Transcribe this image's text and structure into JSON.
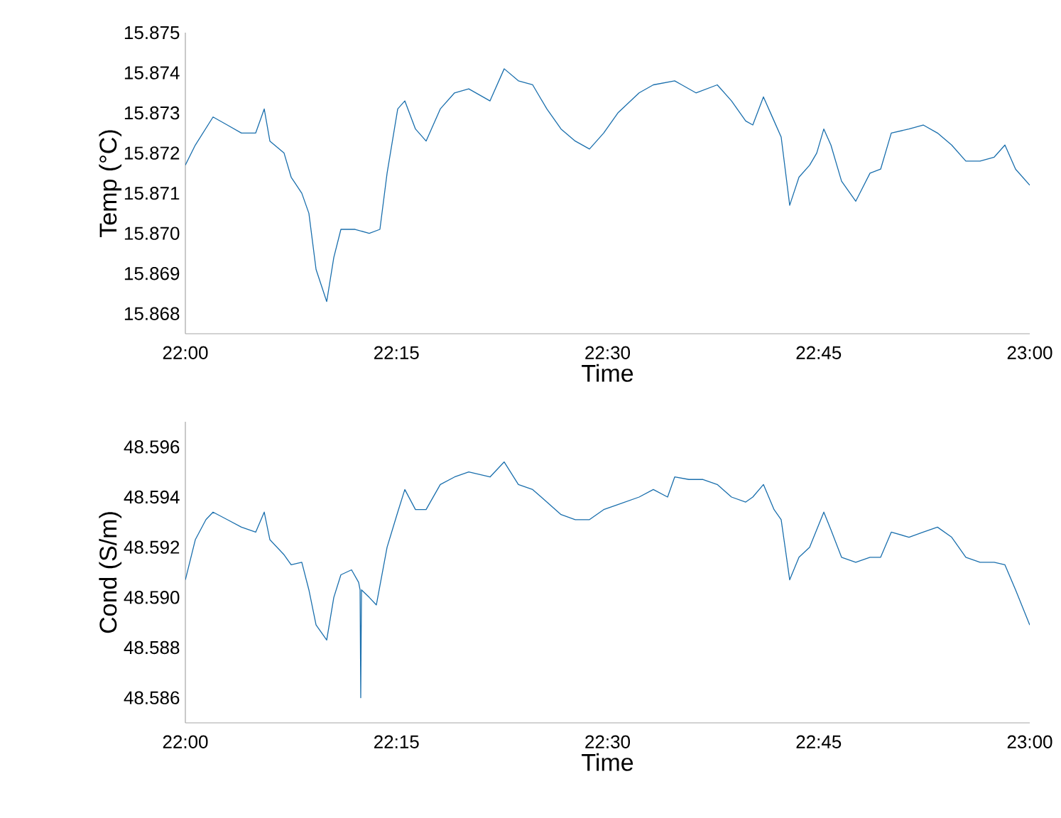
{
  "chart_data": [
    {
      "type": "line",
      "xlabel": "Time",
      "ylabel": "Temp (°C)",
      "color": "#1a6fad",
      "x": [
        22.0,
        22.0118,
        22.0328,
        22.0496,
        22.0664,
        22.0833,
        22.0934,
        22.1001,
        22.1169,
        22.1253,
        22.1379,
        22.1463,
        22.1548,
        22.1674,
        22.1758,
        22.1842,
        22.201,
        22.2178,
        22.2304,
        22.2389,
        22.2515,
        22.2599,
        22.2725,
        22.2851,
        22.3019,
        22.3188,
        22.3356,
        22.3608,
        22.3776,
        22.3944,
        22.4113,
        22.4281,
        22.4449,
        22.4617,
        22.4786,
        22.4954,
        22.5122,
        22.5374,
        22.5542,
        22.5795,
        22.5879,
        22.6047,
        22.6299,
        22.6468,
        22.6636,
        22.672,
        22.6846,
        22.6972,
        22.7056,
        22.7157,
        22.7267,
        22.7393,
        22.7477,
        22.7561,
        22.7645,
        22.7771,
        22.7939,
        22.8108,
        22.8234,
        22.836,
        22.857,
        22.8738,
        22.8907,
        22.9075,
        22.9243,
        22.9411,
        22.9579,
        22.9706,
        22.9832,
        23.0
      ],
      "values": [
        15.8717,
        15.8722,
        15.8729,
        15.8727,
        15.8725,
        15.8725,
        15.8731,
        15.8723,
        15.872,
        15.8714,
        15.871,
        15.8705,
        15.8691,
        15.8683,
        15.8694,
        15.8701,
        15.8701,
        15.87,
        15.8701,
        15.8715,
        15.8731,
        15.8733,
        15.8726,
        15.8723,
        15.8731,
        15.8735,
        15.8736,
        15.8733,
        15.8741,
        15.8738,
        15.8737,
        15.8731,
        15.8726,
        15.8723,
        15.8721,
        15.8725,
        15.873,
        15.8735,
        15.8737,
        15.8738,
        15.8737,
        15.8735,
        15.8737,
        15.8733,
        15.8728,
        15.8727,
        15.8734,
        15.8728,
        15.8724,
        15.8707,
        15.8714,
        15.8717,
        15.872,
        15.8726,
        15.8722,
        15.8713,
        15.8708,
        15.8715,
        15.8716,
        15.8725,
        15.8726,
        15.8727,
        15.8725,
        15.8722,
        15.8718,
        15.8718,
        15.8719,
        15.8722,
        15.8716,
        15.8712
      ],
      "xlim": [
        22,
        23
      ],
      "xticks": [
        {
          "value": 22,
          "label": "22:00"
        },
        {
          "value": 22.25,
          "label": "22:15"
        },
        {
          "value": 22.5,
          "label": "22:30"
        },
        {
          "value": 22.75,
          "label": "22:45"
        },
        {
          "value": 23,
          "label": "23:00"
        }
      ],
      "ylim": [
        15.8675,
        15.875
      ],
      "yticks": [
        {
          "value": 15.868,
          "label": "15.868"
        },
        {
          "value": 15.869,
          "label": "15.869"
        },
        {
          "value": 15.87,
          "label": "15.870"
        },
        {
          "value": 15.871,
          "label": "15.871"
        },
        {
          "value": 15.872,
          "label": "15.872"
        },
        {
          "value": 15.873,
          "label": "15.873"
        },
        {
          "value": 15.874,
          "label": "15.874"
        },
        {
          "value": 15.875,
          "label": "15.875"
        }
      ]
    },
    {
      "type": "line",
      "xlabel": "Time",
      "ylabel": "Cond (S/m)",
      "color": "#1a6fad",
      "x": [
        22.0,
        22.0118,
        22.0244,
        22.0328,
        22.0496,
        22.0664,
        22.0833,
        22.0934,
        22.1001,
        22.1169,
        22.1253,
        22.1379,
        22.1463,
        22.1548,
        22.1674,
        22.1758,
        22.1842,
        22.1968,
        22.2052,
        22.2069,
        22.2077,
        22.2086,
        22.2178,
        22.2262,
        22.2389,
        22.2515,
        22.2599,
        22.2725,
        22.2851,
        22.3019,
        22.3188,
        22.3356,
        22.3608,
        22.3776,
        22.3944,
        22.4113,
        22.4281,
        22.4449,
        22.4617,
        22.4786,
        22.4954,
        22.5122,
        22.5374,
        22.5542,
        22.5711,
        22.5795,
        22.5963,
        22.6131,
        22.6299,
        22.6468,
        22.6636,
        22.672,
        22.6846,
        22.6972,
        22.7056,
        22.7157,
        22.7267,
        22.7393,
        22.7477,
        22.7561,
        22.7645,
        22.7771,
        22.7939,
        22.8108,
        22.8234,
        22.836,
        22.857,
        22.8738,
        22.8907,
        22.9075,
        22.9243,
        22.9411,
        22.9579,
        22.9706,
        22.9832,
        23.0
      ],
      "values": [
        48.5907,
        48.5923,
        48.5931,
        48.5934,
        48.5931,
        48.5928,
        48.5926,
        48.5934,
        48.5923,
        48.5917,
        48.5913,
        48.5914,
        48.5903,
        48.5889,
        48.5883,
        48.59,
        48.5909,
        48.5911,
        48.5906,
        48.5903,
        48.586,
        48.5903,
        48.59,
        48.5897,
        48.592,
        48.5934,
        48.5943,
        48.5935,
        48.5935,
        48.5945,
        48.5948,
        48.595,
        48.5948,
        48.5954,
        48.5945,
        48.5943,
        48.5938,
        48.5933,
        48.5931,
        48.5931,
        48.5935,
        48.5937,
        48.594,
        48.5943,
        48.594,
        48.5948,
        48.5947,
        48.5947,
        48.5945,
        48.594,
        48.5938,
        48.594,
        48.5945,
        48.5935,
        48.5931,
        48.5907,
        48.5916,
        48.592,
        48.5927,
        48.5934,
        48.5927,
        48.5916,
        48.5914,
        48.5916,
        48.5916,
        48.5926,
        48.5924,
        48.5926,
        48.5928,
        48.5924,
        48.5916,
        48.5914,
        48.5914,
        48.5913,
        48.5903,
        48.5889
      ],
      "xlim": [
        22,
        23
      ],
      "xticks": [
        {
          "value": 22,
          "label": "22:00"
        },
        {
          "value": 22.25,
          "label": "22:15"
        },
        {
          "value": 22.5,
          "label": "22:30"
        },
        {
          "value": 22.75,
          "label": "22:45"
        },
        {
          "value": 23,
          "label": "23:00"
        }
      ],
      "ylim": [
        48.585,
        48.597
      ],
      "yticks": [
        {
          "value": 48.586,
          "label": "48.586"
        },
        {
          "value": 48.588,
          "label": "48.588"
        },
        {
          "value": 48.59,
          "label": "48.590"
        },
        {
          "value": 48.592,
          "label": "48.592"
        },
        {
          "value": 48.594,
          "label": "48.594"
        },
        {
          "value": 48.596,
          "label": "48.596"
        }
      ]
    }
  ]
}
